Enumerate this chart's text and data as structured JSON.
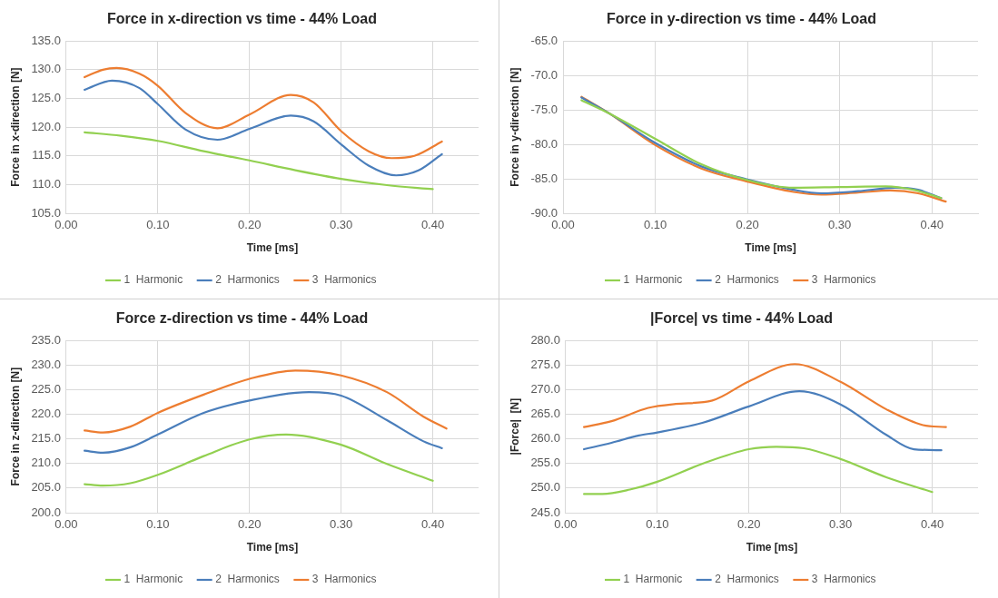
{
  "chart_data": [
    {
      "type": "line",
      "title": "Force in x-direction vs time - 44% Load",
      "xlabel": "Time [ms]",
      "ylabel": "Force in x-direction [N]",
      "grid": true,
      "legend": "bottom",
      "marker": "none",
      "line_style": "solid",
      "xlim": [
        0,
        0.45
      ],
      "xticks": [
        {
          "value": 0,
          "label": "0.00"
        },
        {
          "value": 0.1,
          "label": "0.10"
        },
        {
          "value": 0.2,
          "label": "0.20"
        },
        {
          "value": 0.3,
          "label": "0.30"
        },
        {
          "value": 0.4,
          "label": "0.40"
        }
      ],
      "ylim": [
        105,
        135
      ],
      "yticks": [
        {
          "value": 105,
          "label": "105.0"
        },
        {
          "value": 110,
          "label": "110.0"
        },
        {
          "value": 115,
          "label": "115.0"
        },
        {
          "value": 120,
          "label": "120.0"
        },
        {
          "value": 125,
          "label": "125.0"
        },
        {
          "value": 130,
          "label": "130.0"
        },
        {
          "value": 135,
          "label": "135.0"
        }
      ],
      "series": [
        {
          "name": "1  Harmonic",
          "color": "#92d050",
          "x": [
            0.02,
            0.06,
            0.1,
            0.15,
            0.2,
            0.25,
            0.3,
            0.35,
            0.4
          ],
          "values": [
            119.1,
            118.5,
            117.6,
            115.8,
            114.2,
            112.5,
            111.0,
            109.9,
            109.2
          ]
        },
        {
          "name": "2  Harmonics",
          "color": "#4a7ebb",
          "x": [
            0.02,
            0.05,
            0.08,
            0.1,
            0.13,
            0.165,
            0.2,
            0.245,
            0.27,
            0.3,
            0.33,
            0.36,
            0.385,
            0.41
          ],
          "values": [
            126.5,
            128.1,
            126.8,
            124.0,
            119.6,
            117.8,
            119.7,
            122.0,
            121.0,
            117.0,
            113.3,
            111.6,
            112.5,
            115.3
          ]
        },
        {
          "name": "3  Harmonics",
          "color": "#ed7d31",
          "x": [
            0.02,
            0.04,
            0.055,
            0.08,
            0.1,
            0.13,
            0.165,
            0.2,
            0.245,
            0.27,
            0.3,
            0.33,
            0.355,
            0.38,
            0.41
          ],
          "values": [
            128.7,
            130.0,
            130.3,
            129.3,
            127.2,
            122.5,
            119.8,
            122.2,
            125.6,
            124.3,
            119.3,
            115.8,
            114.6,
            115.0,
            117.5
          ]
        }
      ]
    },
    {
      "type": "line",
      "title": "Force in y-direction vs time - 44% Load",
      "xlabel": "Time [ms]",
      "ylabel": "Force in y-direction [N]",
      "grid": true,
      "legend": "bottom",
      "marker": "none",
      "line_style": "solid",
      "xlim": [
        0,
        0.45
      ],
      "xticks": [
        {
          "value": 0,
          "label": "0.00"
        },
        {
          "value": 0.1,
          "label": "0.10"
        },
        {
          "value": 0.2,
          "label": "0.20"
        },
        {
          "value": 0.3,
          "label": "0.30"
        },
        {
          "value": 0.4,
          "label": "0.40"
        }
      ],
      "ylim": [
        -90,
        -65
      ],
      "yticks": [
        {
          "value": -90,
          "label": "-90.0"
        },
        {
          "value": -85,
          "label": "-85.0"
        },
        {
          "value": -80,
          "label": "-80.0"
        },
        {
          "value": -75,
          "label": "-75.0"
        },
        {
          "value": -70,
          "label": "-70.0"
        },
        {
          "value": -65,
          "label": "-65.0"
        }
      ],
      "series": [
        {
          "name": "1  Harmonic",
          "color": "#92d050",
          "x": [
            0.02,
            0.05,
            0.1,
            0.15,
            0.2,
            0.25,
            0.3,
            0.35,
            0.38,
            0.41
          ],
          "values": [
            -73.6,
            -75.5,
            -79.2,
            -82.9,
            -85.2,
            -86.3,
            -86.2,
            -86.1,
            -86.6,
            -87.8
          ]
        },
        {
          "name": "2  Harmonics",
          "color": "#4a7ebb",
          "x": [
            0.02,
            0.05,
            0.1,
            0.15,
            0.2,
            0.25,
            0.28,
            0.32,
            0.36,
            0.385,
            0.41
          ],
          "values": [
            -73.2,
            -75.5,
            -79.8,
            -83.2,
            -85.1,
            -86.6,
            -87.1,
            -86.8,
            -86.3,
            -86.6,
            -87.8
          ]
        },
        {
          "name": "3  Harmonics",
          "color": "#ed7d31",
          "x": [
            0.02,
            0.05,
            0.1,
            0.15,
            0.2,
            0.25,
            0.28,
            0.32,
            0.355,
            0.385,
            0.415
          ],
          "values": [
            -73.1,
            -75.5,
            -80.1,
            -83.5,
            -85.4,
            -86.9,
            -87.3,
            -87.0,
            -86.7,
            -87.1,
            -88.3
          ]
        }
      ]
    },
    {
      "type": "line",
      "title": "Force z-direction vs time - 44% Load",
      "xlabel": "Time [ms]",
      "ylabel": "Force in z-direction [N]",
      "grid": true,
      "legend": "bottom",
      "marker": "none",
      "line_style": "solid",
      "xlim": [
        0,
        0.45
      ],
      "xticks": [
        {
          "value": 0,
          "label": "0.00"
        },
        {
          "value": 0.1,
          "label": "0.10"
        },
        {
          "value": 0.2,
          "label": "0.20"
        },
        {
          "value": 0.3,
          "label": "0.30"
        },
        {
          "value": 0.4,
          "label": "0.40"
        }
      ],
      "ylim": [
        200,
        235
      ],
      "yticks": [
        {
          "value": 200,
          "label": "200.0"
        },
        {
          "value": 205,
          "label": "205.0"
        },
        {
          "value": 210,
          "label": "210.0"
        },
        {
          "value": 215,
          "label": "215.0"
        },
        {
          "value": 220,
          "label": "220.0"
        },
        {
          "value": 225,
          "label": "225.0"
        },
        {
          "value": 230,
          "label": "230.0"
        },
        {
          "value": 235,
          "label": "235.0"
        }
      ],
      "series": [
        {
          "name": "1  Harmonic",
          "color": "#92d050",
          "x": [
            0.02,
            0.04,
            0.07,
            0.1,
            0.15,
            0.2,
            0.24,
            0.3,
            0.35,
            0.4
          ],
          "values": [
            205.8,
            205.5,
            206.0,
            207.7,
            211.5,
            214.9,
            215.9,
            213.8,
            209.9,
            206.5
          ]
        },
        {
          "name": "2  Harmonics",
          "color": "#4a7ebb",
          "x": [
            0.02,
            0.04,
            0.07,
            0.1,
            0.15,
            0.2,
            0.265,
            0.3,
            0.35,
            0.39,
            0.41
          ],
          "values": [
            212.6,
            212.2,
            213.3,
            215.9,
            220.3,
            222.8,
            224.5,
            223.8,
            218.8,
            214.5,
            213.1
          ]
        },
        {
          "name": "3  Harmonics",
          "color": "#ed7d31",
          "x": [
            0.02,
            0.04,
            0.07,
            0.1,
            0.15,
            0.2,
            0.25,
            0.3,
            0.35,
            0.39,
            0.415
          ],
          "values": [
            216.7,
            216.3,
            217.5,
            220.3,
            224.0,
            227.2,
            228.9,
            227.9,
            224.5,
            219.5,
            217.1
          ]
        }
      ]
    },
    {
      "type": "line",
      "title": "|Force| vs time - 44% Load",
      "xlabel": "Time [ms]",
      "ylabel": "|Force|  [N]",
      "grid": true,
      "legend": "bottom",
      "marker": "none",
      "line_style": "solid",
      "xlim": [
        0,
        0.45
      ],
      "xticks": [
        {
          "value": 0,
          "label": "0.00"
        },
        {
          "value": 0.1,
          "label": "0.10"
        },
        {
          "value": 0.2,
          "label": "0.20"
        },
        {
          "value": 0.3,
          "label": "0.30"
        },
        {
          "value": 0.4,
          "label": "0.40"
        }
      ],
      "ylim": [
        245,
        280
      ],
      "yticks": [
        {
          "value": 245,
          "label": "245.0"
        },
        {
          "value": 250,
          "label": "250.0"
        },
        {
          "value": 255,
          "label": "255.0"
        },
        {
          "value": 260,
          "label": "260.0"
        },
        {
          "value": 265,
          "label": "265.0"
        },
        {
          "value": 270,
          "label": "270.0"
        },
        {
          "value": 275,
          "label": "275.0"
        },
        {
          "value": 280,
          "label": "280.0"
        }
      ],
      "series": [
        {
          "name": "1  Harmonic",
          "color": "#92d050",
          "x": [
            0.02,
            0.04,
            0.07,
            0.1,
            0.15,
            0.2,
            0.23,
            0.26,
            0.3,
            0.35,
            0.4
          ],
          "values": [
            248.8,
            248.8,
            249.7,
            251.3,
            255.0,
            257.9,
            258.4,
            258.1,
            255.9,
            252.2,
            249.2
          ]
        },
        {
          "name": "2  Harmonics",
          "color": "#4a7ebb",
          "x": [
            0.02,
            0.05,
            0.08,
            0.1,
            0.15,
            0.2,
            0.255,
            0.3,
            0.35,
            0.38,
            0.41
          ],
          "values": [
            257.9,
            259.2,
            260.7,
            261.3,
            263.3,
            266.6,
            269.7,
            267.0,
            260.8,
            257.9,
            257.7
          ]
        },
        {
          "name": "3  Harmonics",
          "color": "#ed7d31",
          "x": [
            0.02,
            0.05,
            0.09,
            0.12,
            0.16,
            0.2,
            0.25,
            0.3,
            0.35,
            0.39,
            0.415
          ],
          "values": [
            262.4,
            263.6,
            266.3,
            267.1,
            267.8,
            271.7,
            275.2,
            271.6,
            266.0,
            262.8,
            262.4
          ]
        }
      ]
    }
  ]
}
